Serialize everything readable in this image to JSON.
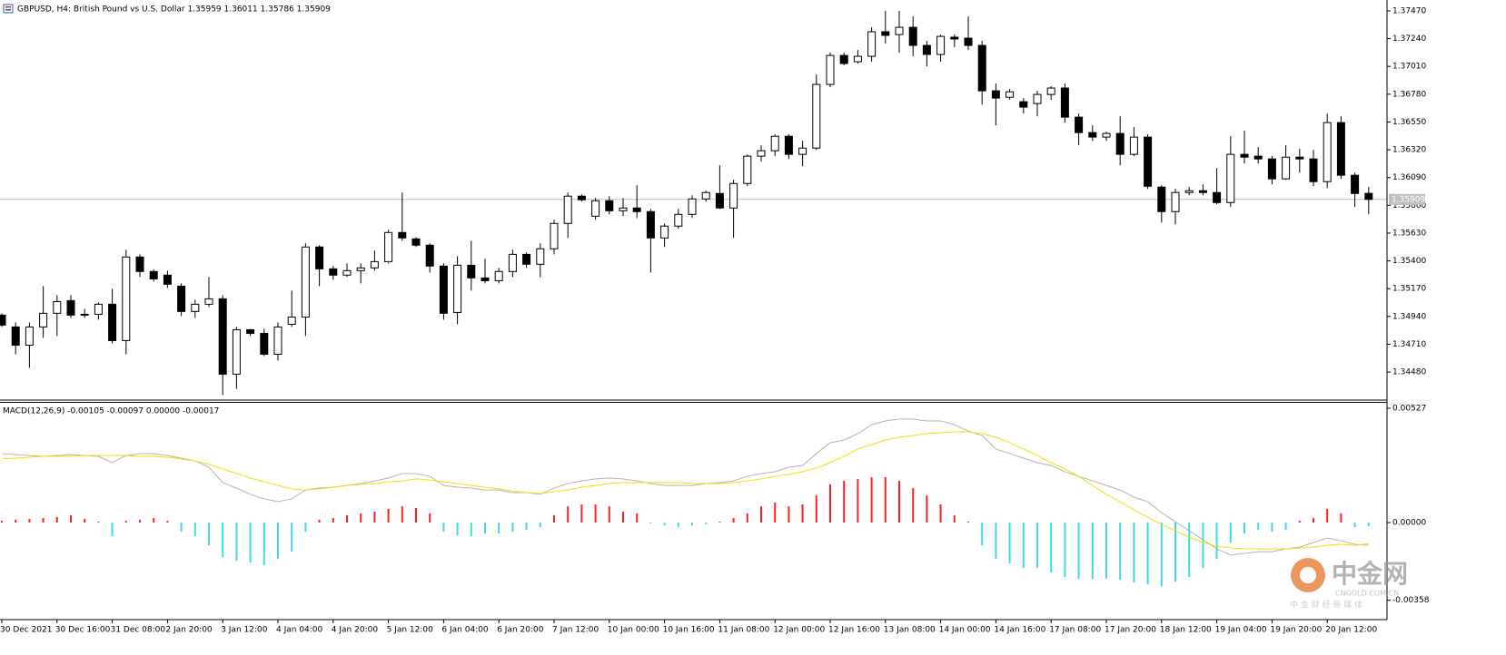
{
  "chart_data": [
    {
      "type": "candlestick",
      "title": "GBPUSD, H4:  British Pound vs U.S. Dollar  1.35959 1.36011 1.35786 1.35909",
      "categories": [
        "30 Dec 2021",
        null,
        null,
        null,
        "30 Dec 16:00",
        null,
        null,
        null,
        "31 Dec 08:00",
        null,
        null,
        null,
        "2 Jan 20:00",
        null,
        null,
        null,
        "3 Jan 12:00",
        null,
        null,
        null,
        "4 Jan 04:00",
        null,
        null,
        null,
        "4 Jan 20:00",
        null,
        null,
        null,
        "5 Jan 12:00",
        null,
        null,
        null,
        "6 Jan 04:00",
        null,
        null,
        null,
        "6 Jan 20:00",
        null,
        null,
        null,
        "7 Jan 12:00",
        null,
        null,
        null,
        "10 Jan 00:00",
        null,
        null,
        null,
        "10 Jan 16:00",
        null,
        null,
        null,
        "11 Jan 08:00",
        null,
        null,
        null,
        "12 Jan 00:00",
        null,
        null,
        null,
        "12 Jan 16:00",
        null,
        null,
        null,
        "13 Jan 08:00",
        null,
        null,
        null,
        "14 Jan 00:00",
        null,
        null,
        null,
        "14 Jan 16:00",
        null,
        null,
        null,
        "17 Jan 08:00",
        null,
        null,
        null,
        "17 Jan 20:00",
        null,
        null,
        null,
        "18 Jan 12:00",
        null,
        null,
        null,
        "19 Jan 04:00",
        null,
        null,
        null,
        "19 Jan 20:00",
        null,
        null,
        null,
        "20 Jan 12:00",
        null,
        null,
        null
      ],
      "open": [
        1.34951,
        1.34853,
        1.34702,
        1.34853,
        1.34966,
        1.35071,
        1.34958,
        1.34958,
        1.35041,
        1.3474,
        1.35432,
        1.35312,
        1.35282,
        1.35191,
        1.34981,
        1.35041,
        1.35086,
        1.34462,
        1.3483,
        1.348,
        1.34627,
        1.34875,
        1.34935,
        1.35515,
        1.35334,
        1.35282,
        1.35319,
        1.35342,
        1.35394,
        1.35635,
        1.35582,
        1.3553,
        1.35357,
        1.34973,
        1.35364,
        1.35259,
        1.35236,
        1.35312,
        1.35454,
        1.35372,
        1.355,
        1.3571,
        1.35936,
        1.3577,
        1.35898,
        1.35815,
        1.35838,
        1.35808,
        1.3559,
        1.35688,
        1.35785,
        1.35913,
        1.35958,
        1.35838,
        1.36041,
        1.36267,
        1.36312,
        1.36432,
        1.36282,
        1.36334,
        1.36861,
        1.37101,
        1.37049,
        1.37094,
        1.37297,
        1.37274,
        1.37334,
        1.37184,
        1.37109,
        1.37252,
        1.37244,
        1.37184,
        1.36808,
        1.36755,
        1.36718,
        1.36703,
        1.36778,
        1.36831,
        1.3659,
        1.36462,
        1.36425,
        1.36455,
        1.36282,
        1.36425,
        1.36011,
        1.35808,
        1.35966,
        1.35981,
        1.35966,
        1.35883,
        1.36282,
        1.36267,
        1.36244,
        1.36079,
        1.36259,
        1.36244,
        1.36056,
        1.36545,
        1.36109,
        1.35959
      ],
      "high": [
        1.34966,
        1.3489,
        1.3489,
        1.35191,
        1.35116,
        1.35116,
        1.35003,
        1.35056,
        1.35169,
        1.35492,
        1.35454,
        1.35327,
        1.35319,
        1.35214,
        1.35078,
        1.35266,
        1.35116,
        1.34853,
        1.34838,
        1.34838,
        1.3489,
        1.35154,
        1.35545,
        1.3553,
        1.35357,
        1.35379,
        1.35379,
        1.35485,
        1.35658,
        1.35966,
        1.35597,
        1.35545,
        1.35379,
        1.35439,
        1.35567,
        1.35417,
        1.35342,
        1.35492,
        1.3547,
        1.35545,
        1.3574,
        1.35966,
        1.35951,
        1.35921,
        1.35936,
        1.35921,
        1.36026,
        1.3583,
        1.3571,
        1.3583,
        1.35943,
        1.35981,
        1.36191,
        1.36071,
        1.36282,
        1.36357,
        1.36447,
        1.36447,
        1.36394,
        1.36943,
        1.37124,
        1.37124,
        1.37146,
        1.37334,
        1.3747,
        1.3747,
        1.37425,
        1.37222,
        1.37274,
        1.37274,
        1.37425,
        1.37222,
        1.36868,
        1.36823,
        1.36748,
        1.36808,
        1.36846,
        1.36868,
        1.3662,
        1.36522,
        1.3647,
        1.36597,
        1.36507,
        1.36447,
        1.36026,
        1.35996,
        1.36011,
        1.36034,
        1.36169,
        1.36432,
        1.36477,
        1.36342,
        1.36267,
        1.36357,
        1.36327,
        1.36319,
        1.3662,
        1.36597,
        1.36131,
        1.36011
      ],
      "low": [
        1.34853,
        1.34627,
        1.34514,
        1.34763,
        1.34778,
        1.34928,
        1.34928,
        1.34913,
        1.34717,
        1.34627,
        1.35266,
        1.35229,
        1.35176,
        1.34943,
        1.34928,
        1.35018,
        1.34289,
        1.34341,
        1.34778,
        1.34612,
        1.34574,
        1.34853,
        1.34778,
        1.35191,
        1.35244,
        1.35266,
        1.35214,
        1.35319,
        1.35379,
        1.35567,
        1.35515,
        1.35304,
        1.34913,
        1.34875,
        1.35154,
        1.35214,
        1.35214,
        1.35266,
        1.35342,
        1.35266,
        1.35454,
        1.3559,
        1.35891,
        1.3574,
        1.35785,
        1.3577,
        1.35755,
        1.35304,
        1.35515,
        1.35665,
        1.35755,
        1.35891,
        1.3583,
        1.3559,
        1.36018,
        1.36222,
        1.36267,
        1.36244,
        1.36184,
        1.36319,
        1.36838,
        1.37019,
        1.37034,
        1.37049,
        1.37199,
        1.37124,
        1.37094,
        1.37011,
        1.37049,
        1.37169,
        1.37146,
        1.36695,
        1.36522,
        1.36733,
        1.3662,
        1.36597,
        1.36733,
        1.36545,
        1.36357,
        1.36394,
        1.36394,
        1.36191,
        1.36267,
        1.35996,
        1.35718,
        1.35703,
        1.35943,
        1.35943,
        1.35868,
        1.35846,
        1.36206,
        1.36206,
        1.36034,
        1.36071,
        1.36131,
        1.36018,
        1.36003,
        1.36079,
        1.35846,
        1.35786
      ],
      "close": [
        1.34868,
        1.34702,
        1.34853,
        1.34966,
        1.35063,
        1.34951,
        1.34951,
        1.35041,
        1.3474,
        1.35432,
        1.35312,
        1.35251,
        1.35206,
        1.34981,
        1.35041,
        1.35086,
        1.34462,
        1.3483,
        1.348,
        1.34627,
        1.34853,
        1.34935,
        1.35515,
        1.35334,
        1.35282,
        1.35319,
        1.35342,
        1.35394,
        1.35635,
        1.3559,
        1.3553,
        1.35357,
        1.34966,
        1.35364,
        1.35259,
        1.35236,
        1.35312,
        1.35454,
        1.35372,
        1.355,
        1.3571,
        1.35936,
        1.35906,
        1.35898,
        1.35815,
        1.35838,
        1.35808,
        1.3559,
        1.35688,
        1.35785,
        1.35913,
        1.35966,
        1.35838,
        1.36041,
        1.36267,
        1.36312,
        1.36432,
        1.36282,
        1.36334,
        1.36861,
        1.37101,
        1.37034,
        1.37094,
        1.37297,
        1.37267,
        1.37334,
        1.37184,
        1.37109,
        1.37259,
        1.37237,
        1.37184,
        1.36808,
        1.36748,
        1.368,
        1.36673,
        1.36778,
        1.36831,
        1.3659,
        1.36462,
        1.36425,
        1.36455,
        1.36282,
        1.36425,
        1.36018,
        1.35808,
        1.35966,
        1.35981,
        1.35966,
        1.35883,
        1.36282,
        1.36259,
        1.36244,
        1.36079,
        1.36259,
        1.36244,
        1.36056,
        1.36545,
        1.36109,
        1.35958,
        1.35909
      ],
      "last_price": 1.35909,
      "ylim": [
        1.34255,
        1.3756
      ],
      "yticks": [
        {
          "value": 1.3747,
          "label": "1.37470"
        },
        {
          "value": 1.3724,
          "label": "1.37240"
        },
        {
          "value": 1.3701,
          "label": "1.37010"
        },
        {
          "value": 1.3678,
          "label": "1.36780"
        },
        {
          "value": 1.3655,
          "label": "1.36550"
        },
        {
          "value": 1.3632,
          "label": "1.36320"
        },
        {
          "value": 1.3609,
          "label": "1.36090"
        },
        {
          "value": 1.3586,
          "label": "1.35860"
        },
        {
          "value": 1.3563,
          "label": "1.35630"
        },
        {
          "value": 1.354,
          "label": "1.35400"
        },
        {
          "value": 1.3517,
          "label": "1.35170"
        },
        {
          "value": 1.3494,
          "label": "1.34940"
        },
        {
          "value": 1.3471,
          "label": "1.34710"
        },
        {
          "value": 1.3448,
          "label": "1.34480"
        }
      ],
      "grid": true,
      "up_color": "#ffffff",
      "down_color": "#000000"
    },
    {
      "type": "macd",
      "title": "MACD(12,26,9) -0.00105 -0.00097 0.00000 -0.00017",
      "histogram": {
        "color_up": "#ff2020",
        "color_down": "#40d8e8",
        "values": [
          8e-05,
          0.00013,
          0.00017,
          0.00021,
          0.00025,
          0.00033,
          0.00017,
          4e-05,
          -0.00063,
          8e-05,
          0.00013,
          0.00021,
          8e-05,
          -0.00042,
          -0.00063,
          -0.00105,
          -0.00159,
          -0.00176,
          -0.00184,
          -0.00196,
          -0.00167,
          -0.00134,
          -0.00042,
          0.00013,
          0.00021,
          0.00033,
          0.00042,
          0.0005,
          0.00063,
          0.00075,
          0.00067,
          0.00042,
          -0.00042,
          -0.00059,
          -0.00063,
          -0.0005,
          -0.0005,
          -0.00042,
          -0.00033,
          -0.00021,
          0.00033,
          0.00075,
          0.00084,
          0.00084,
          0.00075,
          0.0005,
          0.00042,
          -4e-05,
          -0.00013,
          -0.00021,
          -0.00013,
          -8e-05,
          4e-05,
          0.00021,
          0.00042,
          0.00075,
          0.00092,
          0.00075,
          0.00084,
          0.00125,
          0.00176,
          0.00192,
          0.00201,
          0.00209,
          0.00209,
          0.00192,
          0.00159,
          0.00125,
          0.00084,
          0.00033,
          4e-05,
          -0.00105,
          -0.00167,
          -0.00188,
          -0.00209,
          -0.00209,
          -0.0023,
          -0.00251,
          -0.00259,
          -0.00259,
          -0.00259,
          -0.00263,
          -0.00276,
          -0.00284,
          -0.00293,
          -0.00272,
          -0.00251,
          -0.00209,
          -0.00167,
          -0.00092,
          -0.0005,
          -0.00033,
          -0.00042,
          -0.00033,
          8e-05,
          0.00021,
          0.00063,
          0.00042,
          -0.00021,
          -0.00017
        ]
      },
      "series": [
        {
          "color": "#b4b4b4",
          "values": [
            0.00318,
            0.00313,
            0.00309,
            0.00305,
            0.00309,
            0.00313,
            0.00309,
            0.00305,
            0.00276,
            0.00309,
            0.00318,
            0.00318,
            0.00309,
            0.00297,
            0.00284,
            0.00255,
            0.00184,
            0.00159,
            0.0013,
            0.00109,
            0.00096,
            0.00109,
            0.0015,
            0.00159,
            0.00163,
            0.00171,
            0.0018,
            0.00192,
            0.00205,
            0.00226,
            0.00226,
            0.00213,
            0.00171,
            0.00163,
            0.00159,
            0.0015,
            0.0015,
            0.00138,
            0.00138,
            0.0013,
            0.00159,
            0.0018,
            0.00192,
            0.00201,
            0.00205,
            0.00201,
            0.00192,
            0.0018,
            0.00171,
            0.00171,
            0.00171,
            0.0018,
            0.00184,
            0.00192,
            0.00213,
            0.00226,
            0.00234,
            0.00255,
            0.00263,
            0.00318,
            0.00368,
            0.0038,
            0.0041,
            0.00451,
            0.00468,
            0.00477,
            0.00477,
            0.00468,
            0.00468,
            0.00451,
            0.00422,
            0.00401,
            0.00339,
            0.00318,
            0.00297,
            0.00276,
            0.00263,
            0.00234,
            0.00213,
            0.00192,
            0.00171,
            0.0015,
            0.00117,
            0.00096,
            0.00046,
            4e-05,
            -0.00038,
            -0.00079,
            -0.00121,
            -0.0015,
            -0.00142,
            -0.00134,
            -0.00134,
            -0.00121,
            -0.00113,
            -0.00092,
            -0.00071,
            -0.00084,
            -0.001,
            -0.00105
          ]
        },
        {
          "color": "#f0e000",
          "values": [
            0.00293,
            0.00297,
            0.00301,
            0.00305,
            0.00305,
            0.00305,
            0.00309,
            0.00309,
            0.00309,
            0.00309,
            0.00305,
            0.00305,
            0.00301,
            0.00293,
            0.00284,
            0.00268,
            0.00247,
            0.00226,
            0.00205,
            0.00188,
            0.00171,
            0.00155,
            0.0015,
            0.00155,
            0.00163,
            0.00171,
            0.00176,
            0.0018,
            0.00188,
            0.00192,
            0.00201,
            0.00196,
            0.00188,
            0.0018,
            0.00171,
            0.00163,
            0.00155,
            0.00146,
            0.00138,
            0.00134,
            0.00142,
            0.0015,
            0.00163,
            0.00171,
            0.0018,
            0.00184,
            0.00184,
            0.00184,
            0.00184,
            0.00184,
            0.0018,
            0.0018,
            0.0018,
            0.00184,
            0.00192,
            0.00201,
            0.00213,
            0.00222,
            0.00234,
            0.00251,
            0.00276,
            0.00305,
            0.00339,
            0.00359,
            0.0038,
            0.00393,
            0.00401,
            0.0041,
            0.00414,
            0.00418,
            0.00418,
            0.0041,
            0.00393,
            0.00368,
            0.00339,
            0.00309,
            0.00276,
            0.00247,
            0.00213,
            0.00171,
            0.0013,
            0.00096,
            0.00059,
            0.00025,
            -8e-05,
            -0.00038,
            -0.00067,
            -0.00092,
            -0.00109,
            -0.00117,
            -0.00121,
            -0.00121,
            -0.00121,
            -0.00121,
            -0.00117,
            -0.00113,
            -0.00105,
            -0.001,
            -0.00105,
            -0.00097
          ]
        }
      ],
      "ylim": [
        -0.00443,
        0.00556
      ],
      "yticks": [
        {
          "value": 0.00527,
          "label": "0.00527"
        },
        {
          "value": 0,
          "label": "0.00000"
        },
        {
          "value": -0.00358,
          "label": "-0.00358"
        }
      ],
      "grid": true
    }
  ],
  "watermark": {
    "brand": "中金网",
    "site": "CNGOLD.COM.CN",
    "tagline": "中 金 财 经 新 媒 体"
  }
}
